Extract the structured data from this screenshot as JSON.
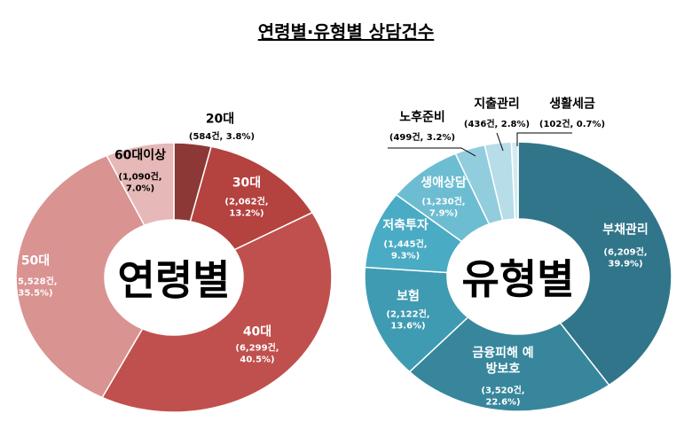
{
  "title": "연령별·유형별  상담건수",
  "chart_data": [
    {
      "type": "pie",
      "center_label": "연령별",
      "categories": [
        "20대",
        "30대",
        "40대",
        "50대",
        "60대이상"
      ],
      "values": [
        3.8,
        13.2,
        40.5,
        35.5,
        7.0
      ],
      "value_labels": [
        "(584건, 3.8%)",
        "(2,062건, 13.2%)",
        "(6,299건, 40.5%)",
        "(5,528건, 35.5%)",
        "(1,090건, 7.0%)"
      ],
      "colors": [
        "#8c3836",
        "#b4423f",
        "#c0504d",
        "#d99391",
        "#e6b8b7"
      ]
    },
    {
      "type": "pie",
      "center_label": "유형별",
      "categories": [
        "부채관리",
        "금융피해 예방보호",
        "보험",
        "저축투자",
        "생애상담",
        "노후준비",
        "지출관리",
        "생활세금"
      ],
      "values": [
        39.9,
        22.6,
        13.6,
        9.3,
        7.9,
        3.2,
        2.8,
        0.7
      ],
      "value_labels": [
        "(6,209건, 39.9%)",
        "(3,520건, 22.6%)",
        "(2,122건, 13.6%)",
        "(1,445건, 9.3%)",
        "(1,230건, 7.9%)",
        "(499건, 3.2%)",
        "(436건, 2.8%)",
        "(102건, 0.7%)"
      ],
      "colors": [
        "#31758a",
        "#37869c",
        "#3f9bb2",
        "#4aabc4",
        "#6dbdd2",
        "#92cddd",
        "#b6dde8",
        "#d3ebf1"
      ]
    }
  ]
}
